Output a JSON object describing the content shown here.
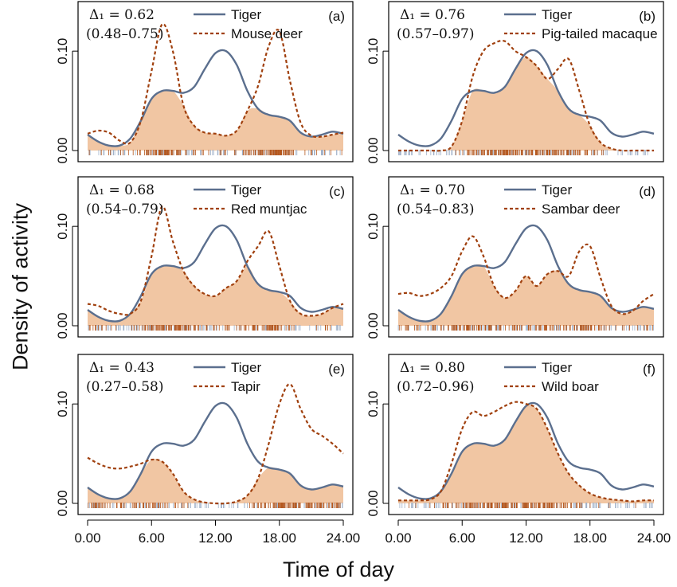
{
  "figure": {
    "ylabel": "Density of activity",
    "xlabel": "Time of day"
  },
  "style": {
    "tiger_color": "#5b6f8e",
    "prey_color": "#a0400e",
    "overlap_fill": "#f1c6a3",
    "rug_tiger_color": "#9fb0c8",
    "rug_prey_color": "#b5581f"
  },
  "chart_data": [
    {
      "panel": "(a)",
      "type": "line",
      "delta_text": "Δ₁ = 0.62",
      "ci_text": "(0.48–0.75)",
      "xlim": [
        0,
        24
      ],
      "ylim": [
        0,
        0.145
      ],
      "x_ticks": [
        "0.00",
        "6.00",
        "12.00",
        "18.00",
        "24.00"
      ],
      "y_ticks": [
        "0.00",
        "0.10"
      ],
      "x": [
        0,
        1,
        2,
        3,
        4,
        5,
        6,
        7,
        8,
        9,
        10,
        11,
        12,
        13,
        14,
        15,
        16,
        17,
        18,
        19,
        20,
        21,
        22,
        23,
        24
      ],
      "series": [
        {
          "name": "Tiger",
          "style": "solid",
          "values": [
            0.016,
            0.009,
            0.005,
            0.005,
            0.012,
            0.03,
            0.052,
            0.06,
            0.06,
            0.058,
            0.064,
            0.082,
            0.098,
            0.1,
            0.086,
            0.06,
            0.042,
            0.036,
            0.034,
            0.03,
            0.018,
            0.014,
            0.016,
            0.019,
            0.017
          ]
        },
        {
          "name": "Mouse deer",
          "style": "dashed",
          "values": [
            0.017,
            0.02,
            0.018,
            0.01,
            0.008,
            0.03,
            0.08,
            0.127,
            0.1,
            0.045,
            0.025,
            0.018,
            0.017,
            0.015,
            0.02,
            0.04,
            0.065,
            0.105,
            0.12,
            0.07,
            0.028,
            0.015,
            0.014,
            0.016,
            0.018
          ]
        }
      ]
    },
    {
      "panel": "(b)",
      "type": "line",
      "delta_text": "Δ₁ = 0.76",
      "ci_text": "(0.57–0.97)",
      "xlim": [
        0,
        24
      ],
      "ylim": [
        0,
        0.145
      ],
      "x_ticks": [
        "0.00",
        "6.00",
        "12.00",
        "18.00",
        "24.00"
      ],
      "y_ticks": [
        "0.00",
        "0.10"
      ],
      "x": [
        0,
        1,
        2,
        3,
        4,
        5,
        6,
        7,
        8,
        9,
        10,
        11,
        12,
        13,
        14,
        15,
        16,
        17,
        18,
        19,
        20,
        21,
        22,
        23,
        24
      ],
      "series": [
        {
          "name": "Tiger",
          "style": "solid",
          "values": [
            0.016,
            0.009,
            0.005,
            0.005,
            0.012,
            0.03,
            0.052,
            0.06,
            0.06,
            0.058,
            0.064,
            0.082,
            0.098,
            0.1,
            0.086,
            0.06,
            0.042,
            0.036,
            0.034,
            0.03,
            0.018,
            0.014,
            0.016,
            0.019,
            0.017
          ]
        },
        {
          "name": "Pig-tailed macaque",
          "style": "dashed",
          "values": [
            0.0,
            0.0,
            0.0,
            0.0,
            0.0,
            0.004,
            0.03,
            0.075,
            0.1,
            0.108,
            0.11,
            0.1,
            0.094,
            0.085,
            0.072,
            0.082,
            0.092,
            0.06,
            0.025,
            0.008,
            0.002,
            0.0,
            0.0,
            0.0,
            0.0
          ]
        }
      ]
    },
    {
      "panel": "(c)",
      "type": "line",
      "delta_text": "Δ₁ = 0.68",
      "ci_text": "(0.54–0.79)",
      "xlim": [
        0,
        24
      ],
      "ylim": [
        0,
        0.145
      ],
      "x_ticks": [
        "0.00",
        "6.00",
        "12.00",
        "18.00",
        "24.00"
      ],
      "y_ticks": [
        "0.00",
        "0.10"
      ],
      "x": [
        0,
        1,
        2,
        3,
        4,
        5,
        6,
        7,
        8,
        9,
        10,
        11,
        12,
        13,
        14,
        15,
        16,
        17,
        18,
        19,
        20,
        21,
        22,
        23,
        24
      ],
      "series": [
        {
          "name": "Tiger",
          "style": "solid",
          "values": [
            0.016,
            0.009,
            0.005,
            0.005,
            0.012,
            0.03,
            0.052,
            0.06,
            0.06,
            0.058,
            0.064,
            0.082,
            0.098,
            0.1,
            0.086,
            0.06,
            0.042,
            0.036,
            0.034,
            0.03,
            0.018,
            0.014,
            0.016,
            0.019,
            0.017
          ]
        },
        {
          "name": "Red muntjac",
          "style": "dashed",
          "values": [
            0.022,
            0.02,
            0.015,
            0.012,
            0.012,
            0.025,
            0.07,
            0.12,
            0.085,
            0.055,
            0.04,
            0.032,
            0.03,
            0.038,
            0.045,
            0.065,
            0.08,
            0.095,
            0.06,
            0.025,
            0.012,
            0.01,
            0.012,
            0.018,
            0.022
          ]
        }
      ]
    },
    {
      "panel": "(d)",
      "type": "line",
      "delta_text": "Δ₁ = 0.70",
      "ci_text": "(0.54–0.83)",
      "xlim": [
        0,
        24
      ],
      "ylim": [
        0,
        0.145
      ],
      "x_ticks": [
        "0.00",
        "6.00",
        "12.00",
        "18.00",
        "24.00"
      ],
      "y_ticks": [
        "0.00",
        "0.10"
      ],
      "x": [
        0,
        1,
        2,
        3,
        4,
        5,
        6,
        7,
        8,
        9,
        10,
        11,
        12,
        13,
        14,
        15,
        16,
        17,
        18,
        19,
        20,
        21,
        22,
        23,
        24
      ],
      "series": [
        {
          "name": "Tiger",
          "style": "solid",
          "values": [
            0.016,
            0.009,
            0.005,
            0.005,
            0.012,
            0.03,
            0.052,
            0.06,
            0.06,
            0.058,
            0.064,
            0.082,
            0.098,
            0.1,
            0.086,
            0.06,
            0.042,
            0.036,
            0.034,
            0.03,
            0.018,
            0.014,
            0.016,
            0.019,
            0.017
          ]
        },
        {
          "name": "Sambar deer",
          "style": "dashed",
          "values": [
            0.032,
            0.033,
            0.03,
            0.032,
            0.038,
            0.05,
            0.075,
            0.09,
            0.07,
            0.04,
            0.028,
            0.035,
            0.05,
            0.04,
            0.052,
            0.055,
            0.05,
            0.075,
            0.08,
            0.048,
            0.02,
            0.012,
            0.015,
            0.025,
            0.032
          ]
        }
      ]
    },
    {
      "panel": "(e)",
      "type": "line",
      "delta_text": "Δ₁ = 0.43",
      "ci_text": "(0.27–0.58)",
      "xlim": [
        0,
        24
      ],
      "ylim": [
        0,
        0.145
      ],
      "x_ticks": [
        "0.00",
        "6.00",
        "12.00",
        "18.00",
        "24.00"
      ],
      "y_ticks": [
        "0.00",
        "0.10"
      ],
      "x": [
        0,
        1,
        2,
        3,
        4,
        5,
        6,
        7,
        8,
        9,
        10,
        11,
        12,
        13,
        14,
        15,
        16,
        17,
        18,
        19,
        20,
        21,
        22,
        23,
        24
      ],
      "series": [
        {
          "name": "Tiger",
          "style": "solid",
          "values": [
            0.016,
            0.009,
            0.005,
            0.005,
            0.012,
            0.03,
            0.052,
            0.06,
            0.06,
            0.058,
            0.064,
            0.082,
            0.098,
            0.1,
            0.086,
            0.06,
            0.042,
            0.036,
            0.034,
            0.03,
            0.018,
            0.014,
            0.016,
            0.019,
            0.017
          ]
        },
        {
          "name": "Tapir",
          "style": "dashed",
          "values": [
            0.046,
            0.04,
            0.036,
            0.035,
            0.037,
            0.04,
            0.044,
            0.042,
            0.03,
            0.012,
            0.004,
            0.001,
            0.0,
            0.0,
            0.002,
            0.008,
            0.025,
            0.06,
            0.1,
            0.12,
            0.095,
            0.075,
            0.068,
            0.06,
            0.05
          ]
        }
      ]
    },
    {
      "panel": "(f)",
      "type": "line",
      "delta_text": "Δ₁ = 0.80",
      "ci_text": "(0.72–0.96)",
      "xlim": [
        0,
        24
      ],
      "ylim": [
        0,
        0.145
      ],
      "x_ticks": [
        "0.00",
        "6.00",
        "12.00",
        "18.00",
        "24.00"
      ],
      "y_ticks": [
        "0.00",
        "0.10"
      ],
      "x": [
        0,
        1,
        2,
        3,
        4,
        5,
        6,
        7,
        8,
        9,
        10,
        11,
        12,
        13,
        14,
        15,
        16,
        17,
        18,
        19,
        20,
        21,
        22,
        23,
        24
      ],
      "series": [
        {
          "name": "Tiger",
          "style": "solid",
          "values": [
            0.016,
            0.009,
            0.005,
            0.005,
            0.012,
            0.03,
            0.052,
            0.06,
            0.06,
            0.058,
            0.064,
            0.082,
            0.098,
            0.1,
            0.086,
            0.06,
            0.042,
            0.036,
            0.034,
            0.03,
            0.018,
            0.014,
            0.016,
            0.019,
            0.017
          ]
        },
        {
          "name": "Wild boar",
          "style": "dashed",
          "values": [
            0.003,
            0.003,
            0.003,
            0.004,
            0.012,
            0.04,
            0.075,
            0.092,
            0.088,
            0.092,
            0.098,
            0.102,
            0.1,
            0.095,
            0.075,
            0.05,
            0.03,
            0.018,
            0.01,
            0.006,
            0.004,
            0.003,
            0.002,
            0.003,
            0.003
          ]
        }
      ]
    }
  ]
}
